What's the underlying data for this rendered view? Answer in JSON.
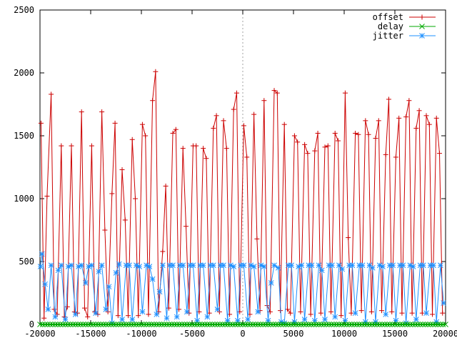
{
  "chart_data": {
    "type": "line",
    "xlim": [
      -20000,
      20000
    ],
    "ylim": [
      0,
      2500
    ],
    "x_ticks": [
      -20000,
      -15000,
      -10000,
      -5000,
      0,
      5000,
      10000,
      15000,
      20000
    ],
    "y_ticks": [
      0,
      500,
      1000,
      1500,
      2000,
      2500
    ],
    "x_tick_labels": [
      "-20000",
      "-15000",
      "-10000",
      "-5000",
      "0",
      "5000",
      "10000",
      "15000",
      "20000"
    ],
    "y_tick_labels": [
      "0",
      "500",
      "1000",
      "1500",
      "2000",
      "2500"
    ],
    "grid": false,
    "zero_axes_dashed": true,
    "legend_position": "top-right",
    "series": [
      {
        "name": "offset",
        "color": "#cc0000",
        "marker": "plus",
        "x": [
          -19900,
          -19600,
          -19300,
          -18900,
          -18600,
          -18300,
          -17900,
          -17600,
          -17300,
          -16900,
          -16600,
          -16300,
          -15900,
          -15600,
          -15300,
          -14900,
          -14600,
          -14300,
          -13900,
          -13600,
          -13300,
          -12900,
          -12600,
          -12300,
          -11900,
          -11600,
          -11300,
          -10900,
          -10600,
          -10300,
          -9900,
          -9600,
          -9300,
          -8900,
          -8600,
          -8300,
          -7900,
          -7600,
          -7300,
          -6900,
          -6600,
          -6300,
          -5900,
          -5600,
          -5300,
          -4900,
          -4600,
          -4300,
          -3900,
          -3600,
          -3300,
          -2900,
          -2600,
          -2300,
          -1900,
          -1600,
          -1300,
          -900,
          -600,
          -300,
          100,
          400,
          700,
          1100,
          1400,
          1700,
          2100,
          2400,
          2700,
          3100,
          3400,
          3700,
          4100,
          4400,
          4700,
          5100,
          5400,
          5700,
          6100,
          6400,
          6700,
          7100,
          7400,
          7700,
          8100,
          8400,
          8700,
          9100,
          9400,
          9700,
          10100,
          10400,
          10700,
          11100,
          11400,
          11700,
          12100,
          12400,
          12700,
          13100,
          13400,
          13700,
          14100,
          14400,
          14700,
          15100,
          15400,
          15700,
          16100,
          16400,
          16700,
          17100,
          17400,
          17700,
          18100,
          18400,
          18700,
          19100,
          19400,
          19700
        ],
        "y": [
          1600,
          50,
          1020,
          1830,
          120,
          80,
          1420,
          60,
          140,
          1420,
          100,
          90,
          1690,
          130,
          60,
          1420,
          100,
          80,
          1690,
          750,
          100,
          1040,
          1600,
          70,
          1230,
          830,
          70,
          1470,
          1000,
          70,
          1590,
          1500,
          80,
          1780,
          2010,
          100,
          580,
          1100,
          130,
          1520,
          1550,
          120,
          1400,
          780,
          90,
          1420,
          1420,
          100,
          1400,
          1320,
          90,
          1560,
          1660,
          100,
          1620,
          1400,
          80,
          1710,
          1840,
          100,
          1580,
          1330,
          80,
          1670,
          680,
          110,
          1780,
          150,
          100,
          1860,
          1840,
          110,
          1590,
          120,
          90,
          1500,
          1450,
          100,
          1430,
          1360,
          80,
          1380,
          1520,
          90,
          1410,
          1420,
          100,
          1520,
          1460,
          70,
          1840,
          690,
          90,
          1520,
          1510,
          110,
          1620,
          1510,
          100,
          1480,
          1620,
          110,
          1350,
          1790,
          100,
          1330,
          1640,
          90,
          1650,
          1780,
          90,
          1560,
          1700,
          90,
          1660,
          1590,
          80,
          1640,
          1360,
          90
        ],
        "values_estimated": true
      },
      {
        "name": "delay",
        "color": "#00aa00",
        "marker": "x",
        "x": [
          -20000,
          -15000,
          -10000,
          -5000,
          0,
          5000,
          10000,
          15000,
          20000
        ],
        "y": [
          0,
          0,
          0,
          0,
          0,
          0,
          0,
          0,
          0
        ]
      },
      {
        "name": "jitter",
        "color": "#1e90ff",
        "marker": "star",
        "x": [
          -19950,
          -19800,
          -19500,
          -19200,
          -18900,
          -18500,
          -18200,
          -17900,
          -17500,
          -17200,
          -16900,
          -16500,
          -16200,
          -15900,
          -15500,
          -15200,
          -14900,
          -14500,
          -14200,
          -13900,
          -13500,
          -13200,
          -12900,
          -12500,
          -12200,
          -11900,
          -11500,
          -11200,
          -10900,
          -10500,
          -10200,
          -9900,
          -9500,
          -9200,
          -8900,
          -8500,
          -8200,
          -7900,
          -7500,
          -7200,
          -6900,
          -6500,
          -6200,
          -5900,
          -5500,
          -5200,
          -4900,
          -4500,
          -4200,
          -3900,
          -3500,
          -3200,
          -2900,
          -2500,
          -2200,
          -1900,
          -1500,
          -1200,
          -900,
          -500,
          -200,
          100,
          500,
          800,
          1100,
          1500,
          1800,
          2100,
          2500,
          2800,
          3100,
          3500,
          3800,
          4100,
          4500,
          4800,
          5100,
          5500,
          5800,
          6100,
          6500,
          6800,
          7100,
          7500,
          7800,
          8100,
          8500,
          8800,
          9100,
          9500,
          9800,
          10100,
          10500,
          10800,
          11100,
          11500,
          11800,
          12100,
          12500,
          12800,
          13100,
          13500,
          13800,
          14100,
          14500,
          14800,
          15100,
          15500,
          15800,
          16100,
          16500,
          16800,
          17100,
          17500,
          17800,
          18100,
          18500,
          18800,
          19100,
          19500,
          19800
        ],
        "y": [
          460,
          560,
          320,
          120,
          470,
          60,
          430,
          470,
          40,
          460,
          470,
          80,
          460,
          470,
          330,
          460,
          470,
          90,
          420,
          470,
          120,
          300,
          10,
          410,
          480,
          40,
          470,
          470,
          40,
          470,
          460,
          100,
          470,
          460,
          360,
          80,
          260,
          470,
          50,
          470,
          470,
          60,
          470,
          470,
          100,
          470,
          470,
          30,
          470,
          470,
          60,
          470,
          470,
          120,
          470,
          470,
          30,
          470,
          460,
          30,
          470,
          470,
          40,
          470,
          460,
          100,
          470,
          460,
          30,
          330,
          470,
          450,
          20,
          10,
          470,
          470,
          20,
          460,
          470,
          40,
          470,
          470,
          30,
          470,
          430,
          40,
          470,
          470,
          60,
          470,
          440,
          30,
          470,
          470,
          90,
          470,
          470,
          20,
          470,
          450,
          20,
          470,
          460,
          80,
          470,
          470,
          30,
          470,
          470,
          10,
          470,
          460,
          40,
          470,
          470,
          90,
          470,
          470,
          20,
          470,
          170
        ],
        "values_estimated": true
      }
    ]
  }
}
